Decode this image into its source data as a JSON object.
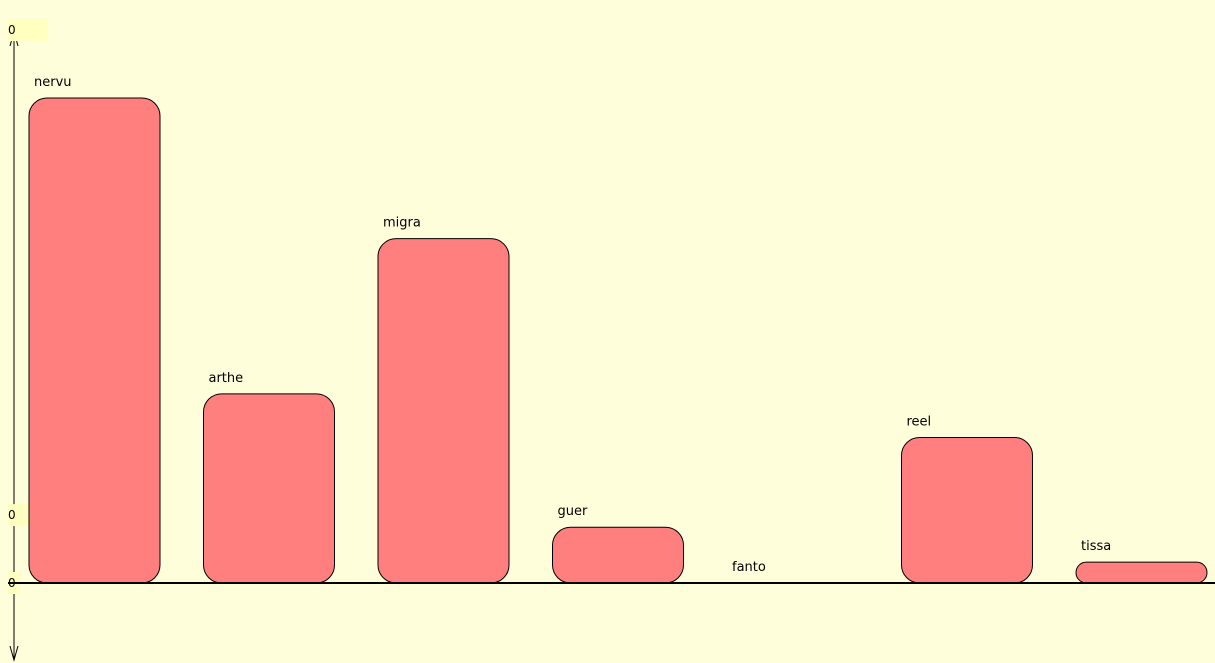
{
  "colors": {
    "background": "#fffedb",
    "bar_fill": "#ff7f7f",
    "bar_stroke": "#000000",
    "tick_label_bg": "#ffffbf",
    "axis": "#000000"
  },
  "chart_data": {
    "type": "bar",
    "title": "",
    "xlabel": "",
    "ylabel": "",
    "categories": [
      "nervu",
      "arthe",
      "migra",
      "guer",
      "fanto",
      "reel",
      "tissa"
    ],
    "values": [
      100,
      39,
      71,
      11.5,
      0,
      30,
      4.3
    ],
    "ylim": [
      -15,
      117
    ],
    "y_tick_labels": [
      "0",
      "0",
      "0"
    ],
    "y_tick_values": [
      114,
      14,
      0
    ],
    "grid": false,
    "legend": "none"
  }
}
